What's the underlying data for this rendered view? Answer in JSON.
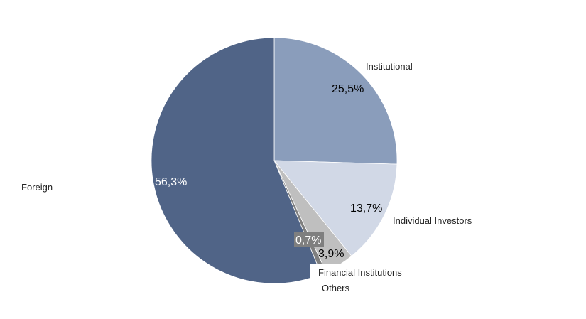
{
  "chart_data": {
    "type": "pie",
    "title": "",
    "start_angle_deg": 0,
    "direction": "clockwise",
    "slices": [
      {
        "category": "Institutional",
        "value": 25.5,
        "label": "25,5%",
        "color": "#8a9dbb",
        "label_color": "#000000"
      },
      {
        "category": "Individual Investors",
        "value": 13.7,
        "label": "13,7%",
        "color": "#d1d8e6",
        "label_color": "#000000"
      },
      {
        "category": "Financial Institutions",
        "value": 3.9,
        "label": "3,9%",
        "color": "#bfbfbf",
        "label_color": "#000000"
      },
      {
        "category": "Others",
        "value": 0.7,
        "label": "0,7%",
        "color": "#7f7f7f",
        "label_color": "#ffffff"
      },
      {
        "category": "Foreign",
        "value": 56.3,
        "label": "56,3%",
        "color": "#506487",
        "label_color": "#ffffff"
      }
    ]
  }
}
